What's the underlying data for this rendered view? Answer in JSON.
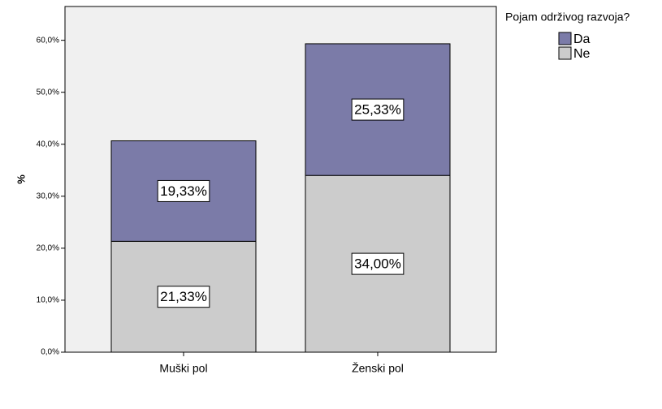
{
  "chart_data": {
    "type": "stacked_bar",
    "y_label": "%",
    "legend_title": "Pojam  održivog razvoja?",
    "categories": [
      "Muški pol",
      "Ženski pol"
    ],
    "series": [
      {
        "name": "Da",
        "color": "#7b7ba8",
        "values": [
          19.33,
          25.33
        ],
        "value_labels": [
          "19,33%",
          "25,33%"
        ]
      },
      {
        "name": "Ne",
        "color": "#cccccc",
        "values": [
          21.33,
          34.0
        ],
        "value_labels": [
          "21,33%",
          "34,00%"
        ]
      }
    ],
    "ylim": [
      0,
      66.5
    ],
    "yticks": [
      {
        "value": 0,
        "label": "0,0%"
      },
      {
        "value": 10,
        "label": "10,0%"
      },
      {
        "value": 20,
        "label": "20,0%"
      },
      {
        "value": 30,
        "label": "30,0%"
      },
      {
        "value": 40,
        "label": "40,0%"
      },
      {
        "value": 50,
        "label": "50,0%"
      },
      {
        "value": 60,
        "label": "60,0%"
      }
    ],
    "legend_position": "right",
    "plot_background": "#f0f0f0"
  }
}
